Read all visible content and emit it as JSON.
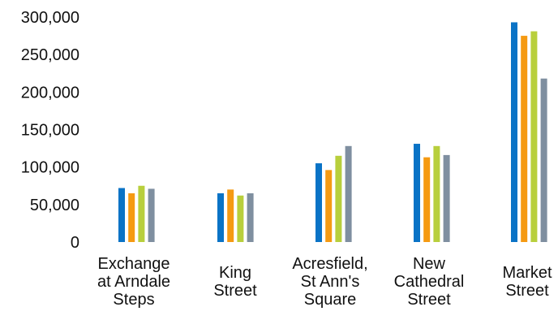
{
  "chart_data": {
    "type": "bar",
    "categories": [
      [
        "Exchange",
        "at Arndale",
        "Steps"
      ],
      [
        "King",
        "Street"
      ],
      [
        "Acresfield,",
        "St Ann's",
        "Square"
      ],
      [
        "New",
        "Cathedral",
        "Street"
      ],
      [
        "Market",
        "Street"
      ]
    ],
    "series": [
      {
        "values": [
          72000,
          65000,
          105000,
          131000,
          293000
        ],
        "color": "#0a73c6"
      },
      {
        "values": [
          65000,
          70000,
          96000,
          113000,
          275000
        ],
        "color": "#f59a12"
      },
      {
        "values": [
          75000,
          62000,
          115000,
          128000,
          281000
        ],
        "color": "#b8cf3c"
      },
      {
        "values": [
          71000,
          65000,
          128000,
          116000,
          218000
        ],
        "color": "#7f8fa0"
      }
    ],
    "yticks": [
      "300,000",
      "250,000",
      "200,000",
      "150,000",
      "100,000",
      "50,000",
      "0"
    ],
    "ylim": [
      0,
      300000
    ],
    "grid": false,
    "legend": "none"
  }
}
